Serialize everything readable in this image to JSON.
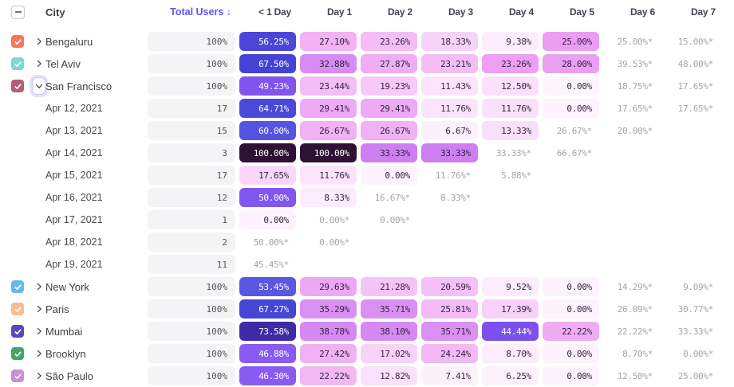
{
  "header": {
    "city_column": "City",
    "total_users_column": "Total Users ↓",
    "day_columns": [
      "< 1 Day",
      "Day 1",
      "Day 2",
      "Day 3",
      "Day 4",
      "Day 5",
      "Day 6",
      "Day 7"
    ]
  },
  "ui_colors": {
    "accent": "#5f55f0",
    "total_pill_bg": "#f4f4f6",
    "muted_text": "#a4a4ae",
    "dark_cell_text": "#332740",
    "focus_ring": "#e5e0fc"
  },
  "rows": [
    {
      "kind": "city",
      "label": "Bengaluru",
      "checkbox_color": "#f4795b",
      "expanded": false,
      "total": "100%",
      "cells": [
        {
          "v": "56.25%",
          "bg": "#4c46d8",
          "light": true
        },
        {
          "v": "27.10%",
          "bg": "#f2b2f5"
        },
        {
          "v": "23.26%",
          "bg": "#f4bdf6"
        },
        {
          "v": "18.33%",
          "bg": "#f8d3f9"
        },
        {
          "v": "9.38%",
          "bg": "#fcecfd"
        },
        {
          "v": "25.00%",
          "bg": "#ea9df3"
        },
        {
          "v": "25.00%*",
          "muted": true
        },
        {
          "v": "15.00%*",
          "muted": true
        }
      ]
    },
    {
      "kind": "city",
      "label": "Tel Aviv",
      "checkbox_color": "#7fd9cb",
      "expanded": false,
      "total": "100%",
      "cells": [
        {
          "v": "67.50%",
          "bg": "#4543d4",
          "light": true
        },
        {
          "v": "32.88%",
          "bg": "#d88bf3"
        },
        {
          "v": "27.87%",
          "bg": "#f0adf5"
        },
        {
          "v": "23.21%",
          "bg": "#f4bdf6"
        },
        {
          "v": "23.26%",
          "bg": "#ee9ff3"
        },
        {
          "v": "28.00%",
          "bg": "#eb9ff3"
        },
        {
          "v": "39.53%*",
          "muted": true
        },
        {
          "v": "48.00%*",
          "muted": true
        }
      ]
    },
    {
      "kind": "city",
      "label": "San Francisco",
      "checkbox_color": "#b25d72",
      "expanded": true,
      "total": "100%",
      "cells": [
        {
          "v": "49.23%",
          "bg": "#8254ee",
          "light": true
        },
        {
          "v": "23.44%",
          "bg": "#f4bdf6"
        },
        {
          "v": "19.23%",
          "bg": "#f6c9f8"
        },
        {
          "v": "11.43%",
          "bg": "#fbe4fc"
        },
        {
          "v": "12.50%",
          "bg": "#fae0fb"
        },
        {
          "v": "0.00%",
          "bg": "#fdf4fd"
        },
        {
          "v": "18.75%*",
          "muted": true
        },
        {
          "v": "17.65%*",
          "muted": true
        }
      ]
    },
    {
      "kind": "date",
      "label": "Apr 12, 2021",
      "total": "17",
      "cells": [
        {
          "v": "64.71%",
          "bg": "#4a49d9",
          "light": true
        },
        {
          "v": "29.41%",
          "bg": "#eeaaf5"
        },
        {
          "v": "29.41%",
          "bg": "#eeaaf5"
        },
        {
          "v": "11.76%",
          "bg": "#fbe3fc"
        },
        {
          "v": "11.76%",
          "bg": "#fae0fb"
        },
        {
          "v": "0.00%",
          "bg": "#fdf2fd"
        },
        {
          "v": "17.65%*",
          "muted": true
        },
        {
          "v": "17.65%*",
          "muted": true
        }
      ]
    },
    {
      "kind": "date",
      "label": "Apr 13, 2021",
      "total": "15",
      "cells": [
        {
          "v": "60.00%",
          "bg": "#5553e0",
          "light": true
        },
        {
          "v": "26.67%",
          "bg": "#f1b1f5"
        },
        {
          "v": "26.67%",
          "bg": "#f1b1f5"
        },
        {
          "v": "6.67%",
          "bg": "#fdf0fd"
        },
        {
          "v": "13.33%",
          "bg": "#fadffb"
        },
        {
          "v": "26.67%*",
          "muted": true
        },
        {
          "v": "20.00%*",
          "muted": true
        }
      ]
    },
    {
      "kind": "date",
      "label": "Apr 14, 2021",
      "total": "3",
      "cells": [
        {
          "v": "100.00%",
          "bg": "#2e1135",
          "light": true
        },
        {
          "v": "100.00%",
          "bg": "#2e1135",
          "light": true
        },
        {
          "v": "33.33%",
          "bg": "#cd7ff1"
        },
        {
          "v": "33.33%",
          "bg": "#cd7ff1"
        },
        {
          "v": "33.33%*",
          "muted": true
        },
        {
          "v": "66.67%*",
          "muted": true
        }
      ]
    },
    {
      "kind": "date",
      "label": "Apr 15, 2021",
      "total": "17",
      "cells": [
        {
          "v": "17.65%",
          "bg": "#f9d6fa"
        },
        {
          "v": "11.76%",
          "bg": "#fbe3fc"
        },
        {
          "v": "0.00%",
          "bg": "#fdf2fd"
        },
        {
          "v": "11.76%*",
          "muted": true
        },
        {
          "v": "5.88%*",
          "muted": true
        }
      ]
    },
    {
      "kind": "date",
      "label": "Apr 16, 2021",
      "total": "12",
      "cells": [
        {
          "v": "50.00%",
          "bg": "#8156ef",
          "light": true
        },
        {
          "v": "8.33%",
          "bg": "#fcecfd"
        },
        {
          "v": "16.67%*",
          "muted": true
        },
        {
          "v": "8.33%*",
          "muted": true
        }
      ]
    },
    {
      "kind": "date",
      "label": "Apr 17, 2021",
      "total": "1",
      "cells": [
        {
          "v": "0.00%",
          "bg": "#fdf2fd"
        },
        {
          "v": "0.00%*",
          "muted": true
        },
        {
          "v": "0.00%*",
          "muted": true
        }
      ]
    },
    {
      "kind": "date",
      "label": "Apr 18, 2021",
      "total": "2",
      "cells": [
        {
          "v": "50.00%*",
          "muted": true
        },
        {
          "v": "0.00%*",
          "muted": true
        }
      ]
    },
    {
      "kind": "date",
      "label": "Apr 19, 2021",
      "total": "11",
      "cells": [
        {
          "v": "45.45%*",
          "muted": true
        }
      ]
    },
    {
      "kind": "city",
      "label": "New York",
      "checkbox_color": "#64bbee",
      "expanded": false,
      "total": "100%",
      "cells": [
        {
          "v": "53.45%",
          "bg": "#5a57e2",
          "light": true
        },
        {
          "v": "29.63%",
          "bg": "#eda8f5"
        },
        {
          "v": "21.28%",
          "bg": "#f5c4f7"
        },
        {
          "v": "20.59%",
          "bg": "#f5c0f7"
        },
        {
          "v": "9.52%",
          "bg": "#fcecfd"
        },
        {
          "v": "0.00%",
          "bg": "#fdf2fd"
        },
        {
          "v": "14.29%*",
          "muted": true
        },
        {
          "v": "9.09%*",
          "muted": true
        }
      ]
    },
    {
      "kind": "city",
      "label": "Paris",
      "checkbox_color": "#f9bd8b",
      "expanded": false,
      "total": "100%",
      "cells": [
        {
          "v": "67.27%",
          "bg": "#4645d6",
          "light": true
        },
        {
          "v": "35.29%",
          "bg": "#da90f3"
        },
        {
          "v": "35.71%",
          "bg": "#da90f3"
        },
        {
          "v": "25.81%",
          "bg": "#f3baf6"
        },
        {
          "v": "17.39%",
          "bg": "#f8d0f9"
        },
        {
          "v": "0.00%",
          "bg": "#fdf2fd"
        },
        {
          "v": "26.09%*",
          "muted": true
        },
        {
          "v": "30.77%*",
          "muted": true
        }
      ]
    },
    {
      "kind": "city",
      "label": "Mumbai",
      "checkbox_color": "#584abc",
      "expanded": false,
      "total": "100%",
      "cells": [
        {
          "v": "73.58%",
          "bg": "#3e2aa6",
          "light": true
        },
        {
          "v": "38.78%",
          "bg": "#d689f2"
        },
        {
          "v": "38.10%",
          "bg": "#d689f2"
        },
        {
          "v": "35.71%",
          "bg": "#da90f3"
        },
        {
          "v": "44.44%",
          "bg": "#7c50ee",
          "light": true
        },
        {
          "v": "22.22%",
          "bg": "#f0abf4"
        },
        {
          "v": "22.22%*",
          "muted": true
        },
        {
          "v": "33.33%*",
          "muted": true
        }
      ]
    },
    {
      "kind": "city",
      "label": "Brooklyn",
      "checkbox_color": "#42a568",
      "expanded": false,
      "total": "100%",
      "cells": [
        {
          "v": "46.88%",
          "bg": "#8a5af2",
          "light": true
        },
        {
          "v": "27.42%",
          "bg": "#f1b1f5"
        },
        {
          "v": "17.02%",
          "bg": "#f8d2f9"
        },
        {
          "v": "24.24%",
          "bg": "#f3b8f6"
        },
        {
          "v": "8.70%",
          "bg": "#fcecfd"
        },
        {
          "v": "0.00%",
          "bg": "#fdf2fd"
        },
        {
          "v": "8.70%*",
          "muted": true
        },
        {
          "v": "0.00%*",
          "muted": true
        }
      ]
    },
    {
      "kind": "city",
      "label": "São Paulo",
      "checkbox_color": "#c78fdc",
      "expanded": false,
      "total": "100%",
      "cells": [
        {
          "v": "46.30%",
          "bg": "#8a5af2",
          "light": true
        },
        {
          "v": "22.22%",
          "bg": "#f3b7f5"
        },
        {
          "v": "12.82%",
          "bg": "#fbe1fb"
        },
        {
          "v": "7.41%",
          "bg": "#fdf0fd"
        },
        {
          "v": "6.25%",
          "bg": "#fdf1fd"
        },
        {
          "v": "0.00%",
          "bg": "#fdf2fd"
        },
        {
          "v": "12.50%*",
          "muted": true
        },
        {
          "v": "25.00%*",
          "muted": true
        }
      ]
    }
  ]
}
